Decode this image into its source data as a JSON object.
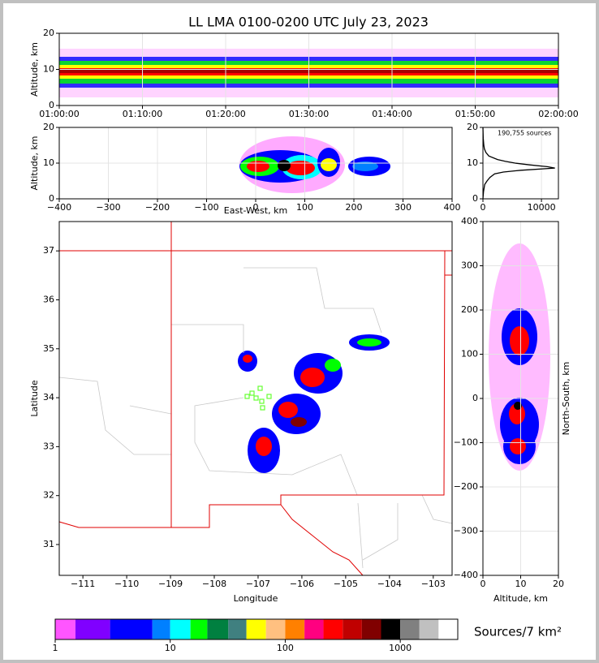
{
  "chart_data": [
    {
      "type": "density",
      "title": "LL LMA 0100-0200 UTC July 23, 2023",
      "ylabel": "Altitude, km",
      "xlim": [
        0,
        60
      ],
      "xticks": [
        {
          "value": 0,
          "label": "01:00:00"
        },
        {
          "value": 10,
          "label": "01:10:00"
        },
        {
          "value": 20,
          "label": "01:20:00"
        },
        {
          "value": 30,
          "label": "01:30:00"
        },
        {
          "value": 40,
          "label": "01:40:00"
        },
        {
          "value": 50,
          "label": "01:50:00"
        },
        {
          "value": 60,
          "label": "02:00:00"
        }
      ],
      "ylim": [
        0,
        20
      ],
      "yticks": [
        0,
        10,
        20
      ],
      "grid": true
    },
    {
      "type": "density",
      "xlabel": "East-West, km",
      "ylabel": "Altitude, km",
      "xlim": [
        -400,
        400
      ],
      "xticks": [
        {
          "value": -400,
          "label": "−400"
        },
        {
          "value": -300,
          "label": "−300"
        },
        {
          "value": -200,
          "label": "−200"
        },
        {
          "value": -100,
          "label": "−100"
        },
        0,
        100,
        200,
        300,
        400
      ],
      "ylim": [
        0,
        20
      ],
      "yticks": [
        0,
        10,
        20
      ],
      "grid": true
    },
    {
      "type": "profile",
      "annotation": "190,755 sources",
      "color": "#000000",
      "altitudes": [
        0,
        2,
        4,
        5,
        6,
        7,
        7.5,
        8,
        8.6,
        9,
        9.5,
        10,
        10.5,
        11,
        12,
        13,
        14,
        15,
        17,
        20
      ],
      "values": [
        0,
        100,
        300,
        700,
        1200,
        2000,
        3500,
        6500,
        12300,
        11000,
        8000,
        5500,
        3800,
        2500,
        1000,
        500,
        250,
        150,
        50,
        0
      ],
      "xlim": [
        0,
        12900
      ],
      "xticks": [
        0,
        10000
      ],
      "ylim": [
        0,
        20
      ],
      "yticks": [
        0,
        10,
        20
      ],
      "grid": true
    },
    {
      "type": "density",
      "xlabel": "Longitude",
      "ylabel": "Latitude",
      "xlim": [
        -111.54,
        -102.57
      ],
      "xticks": [
        {
          "value": -111,
          "label": "−111"
        },
        {
          "value": -110,
          "label": "−110"
        },
        {
          "value": -109,
          "label": "−109"
        },
        {
          "value": -108,
          "label": "−108"
        },
        {
          "value": -107,
          "label": "−107"
        },
        {
          "value": -106,
          "label": "−106"
        },
        {
          "value": -105,
          "label": "−105"
        },
        {
          "value": -104,
          "label": "−104"
        },
        {
          "value": -103,
          "label": "−103"
        }
      ],
      "ylim": [
        30.37,
        37.6
      ],
      "yticks": [
        31,
        32,
        33,
        34,
        35,
        36,
        37
      ],
      "grid": false
    },
    {
      "type": "density",
      "xlabel": "Altitude, km",
      "ylabel": "North-South, km",
      "ylabel_side": "right",
      "xlim": [
        0,
        20
      ],
      "xticks": [
        0,
        10,
        20
      ],
      "ylim": [
        -400,
        400
      ],
      "yticks": [
        {
          "value": -400,
          "label": "−400"
        },
        {
          "value": -300,
          "label": "−300"
        },
        {
          "value": -200,
          "label": "−200"
        },
        {
          "value": -100,
          "label": "−100"
        },
        0,
        100,
        200,
        300,
        400
      ],
      "grid": true
    },
    {
      "type": "colorbar",
      "label": "Sources/7 km²",
      "log": true,
      "bins": [
        1,
        1.5,
        3,
        7,
        10,
        15,
        21,
        32,
        46,
        68,
        100,
        147,
        215,
        316,
        464,
        681,
        1000,
        1468,
        2154,
        3162
      ],
      "colors": [
        "#ff55ff",
        "#8000ff",
        "#0000ff",
        "#0080ff",
        "#00ffff",
        "#00ff00",
        "#008040",
        "#408080",
        "#ffff00",
        "#ffc080",
        "#ff8000",
        "#ff0080",
        "#ff0000",
        "#c00000",
        "#800000",
        "#000000",
        "#808080",
        "#c0c0c0",
        "#ffffff"
      ],
      "xlim": [
        1,
        3162
      ],
      "xticks": [
        1,
        10,
        100,
        1000
      ]
    }
  ]
}
